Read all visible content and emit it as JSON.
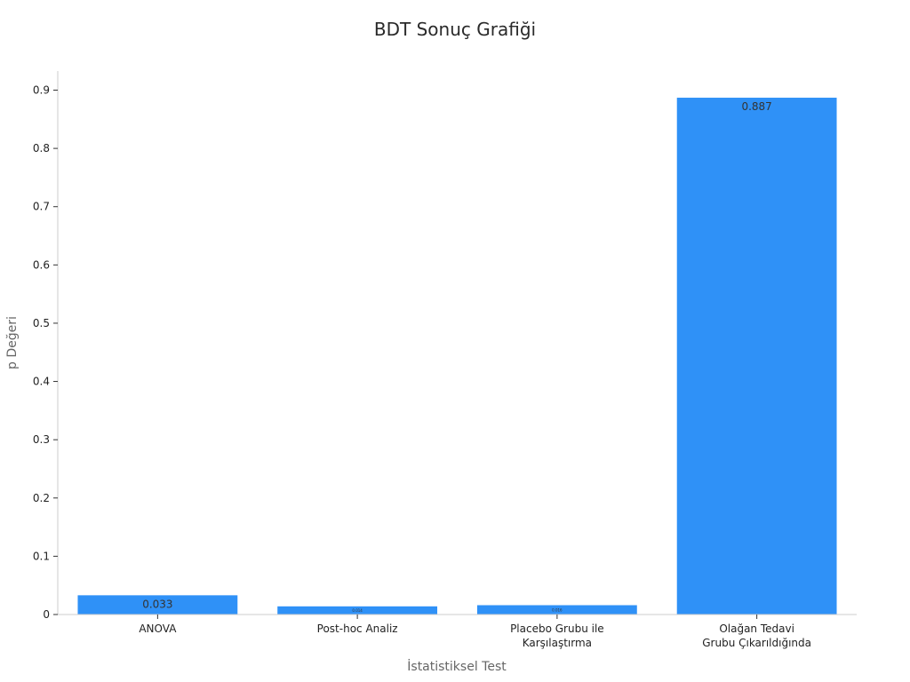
{
  "chart_data": {
    "type": "bar",
    "title": "BDT Sonuç Grafiği",
    "xlabel": "İstatistiksel Test",
    "ylabel": "p Değeri",
    "categories": [
      [
        "ANOVA"
      ],
      [
        "Post-hoc Analiz"
      ],
      [
        "Placebo Grubu ile",
        "Karşılaştırma"
      ],
      [
        "Olağan Tedavi",
        "Grubu Çıkarıldığında"
      ]
    ],
    "values": [
      0.033,
      0.014,
      0.016,
      0.887
    ],
    "data_labels": [
      "0.033",
      "0.014",
      "0.016",
      "0.887"
    ],
    "ylim": [
      0,
      0.93
    ],
    "yticks": [
      0,
      0.1,
      0.2,
      0.3,
      0.4,
      0.5,
      0.6,
      0.7,
      0.8,
      0.9
    ],
    "ytick_labels": [
      "0",
      "0.1",
      "0.2",
      "0.3",
      "0.4",
      "0.5",
      "0.6",
      "0.7",
      "0.8",
      "0.9"
    ],
    "bar_color": "#2f91f7",
    "grid": false
  }
}
